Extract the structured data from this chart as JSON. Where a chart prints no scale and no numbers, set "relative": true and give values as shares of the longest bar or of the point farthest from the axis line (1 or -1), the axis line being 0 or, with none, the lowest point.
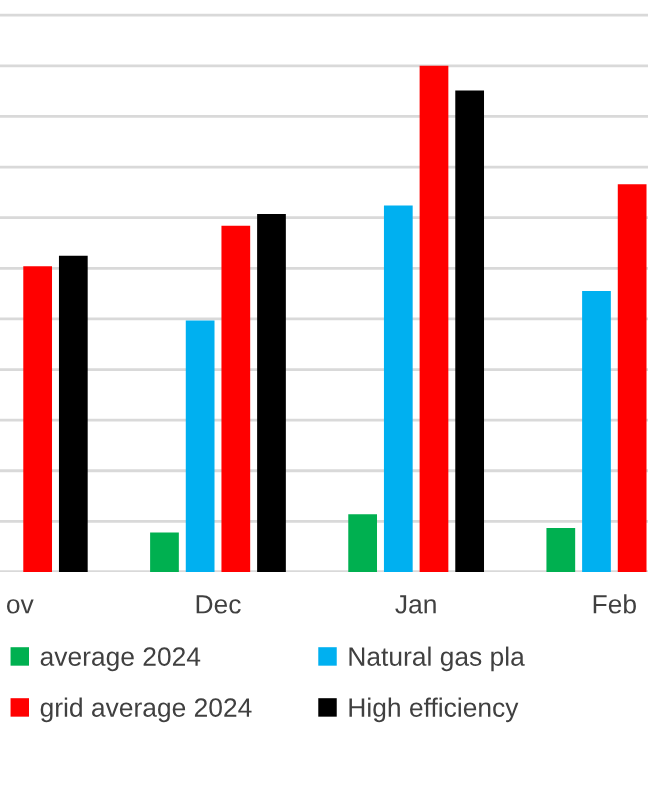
{
  "chart_data": {
    "type": "bar",
    "relative": true,
    "categories": [
      "ov",
      "Dec",
      "Jan",
      "Feb"
    ],
    "series": [
      {
        "name": "average 2024",
        "color": "#00b050",
        "values": [
          null,
          0.078,
          0.114,
          0.087
        ]
      },
      {
        "name": "Natural gas pla",
        "color": "#00b0f0",
        "values": [
          null,
          0.497,
          0.724,
          0.555
        ]
      },
      {
        "name": "grid average 2024",
        "color": "#ff0000",
        "values": [
          0.604,
          0.684,
          1,
          0.766
        ]
      },
      {
        "name": "High efficiency",
        "color": "#000000",
        "values": [
          0.625,
          0.707,
          0.951,
          null
        ]
      }
    ],
    "grid": "y",
    "legend": "bottom"
  }
}
